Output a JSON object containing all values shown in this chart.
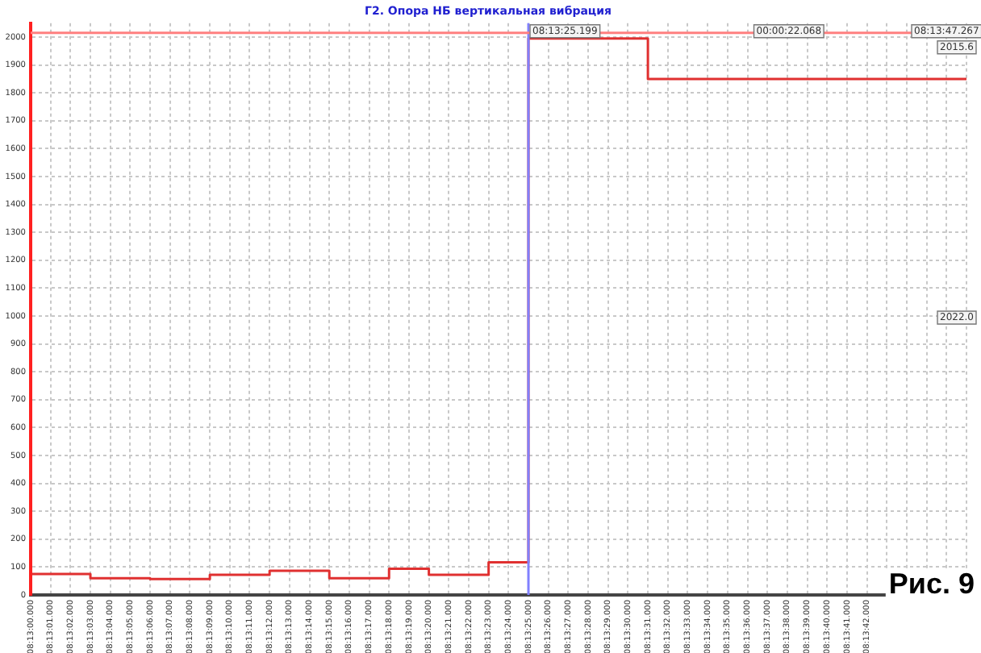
{
  "chart_data": {
    "type": "step",
    "title": "Г2. Опора НБ вертикальная вибрация",
    "categories": [
      "08:13:00.000",
      "08:13:01.000",
      "08:13:02.000",
      "08:13:03.000",
      "08:13:04.000",
      "08:13:05.000",
      "08:13:06.000",
      "08:13:07.000",
      "08:13:08.000",
      "08:13:09.000",
      "08:13:10.000",
      "08:13:11.000",
      "08:13:12.000",
      "08:13:13.000",
      "08:13:14.000",
      "08:13:15.000",
      "08:13:16.000",
      "08:13:17.000",
      "08:13:18.000",
      "08:13:19.000",
      "08:13:20.000",
      "08:13:21.000",
      "08:13:22.000",
      "08:13:23.000",
      "08:13:24.000",
      "08:13:25.000",
      "08:13:26.000",
      "08:13:27.000",
      "08:13:28.000",
      "08:13:29.000",
      "08:13:30.000",
      "08:13:31.000",
      "08:13:32.000",
      "08:13:33.000",
      "08:13:34.000",
      "08:13:35.000",
      "08:13:36.000",
      "08:13:37.000",
      "08:13:38.000",
      "08:13:39.000",
      "08:13:40.000",
      "08:13:41.000",
      "08:13:42.000",
      null,
      null,
      null,
      null,
      null
    ],
    "series": [
      {
        "color": "#e03030",
        "values": [
          75,
          75,
          75,
          60,
          60,
          60,
          57,
          57,
          57,
          72,
          72,
          72,
          87,
          87,
          87,
          60,
          60,
          60,
          94,
          94,
          72,
          72,
          72,
          117,
          117,
          1995,
          1995,
          1995,
          1995,
          1995,
          1995,
          1850,
          1850,
          1850,
          1850,
          1850,
          1850,
          1850,
          1850,
          1850,
          1850,
          1850,
          1850,
          1850,
          1850,
          1850,
          1850,
          1850
        ]
      }
    ],
    "ylim": [
      0,
      2050
    ],
    "yticks": [
      0,
      100,
      200,
      300,
      400,
      500,
      600,
      700,
      800,
      900,
      1000,
      1100,
      1200,
      1300,
      1400,
      1500,
      1600,
      1700,
      1800,
      1900,
      2000
    ],
    "grid": true,
    "legend": false,
    "marker": "none",
    "line_style": "solid",
    "ref_lines": [
      {
        "axis": "x",
        "value": "08:13:25.000",
        "color": "#8080ff"
      },
      {
        "axis": "x",
        "value": "08:13:00.000",
        "color": "#ff2020"
      },
      {
        "axis": "y",
        "value": 2015.6,
        "color": "#ff8080"
      }
    ],
    "annotations": [
      "08:13:25.199",
      "00:00:22.068",
      "08:13:47.267",
      "2015.6",
      "2022.0",
      "Рис. 9"
    ]
  }
}
